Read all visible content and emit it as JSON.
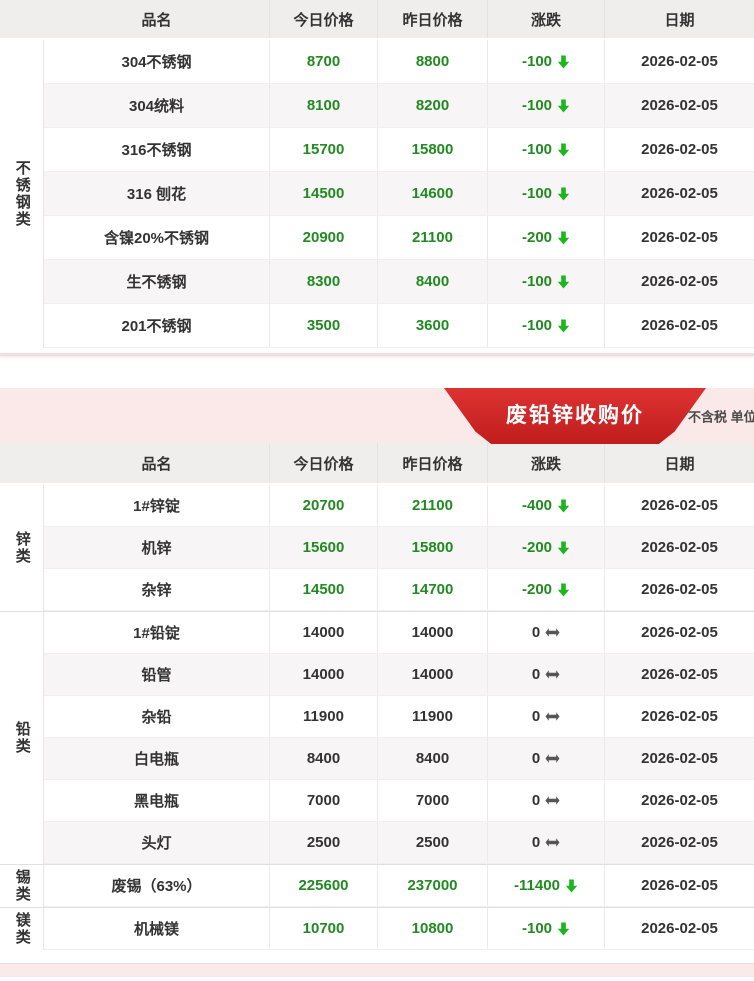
{
  "columns": {
    "name": "品名",
    "today": "今日价格",
    "yesterday": "昨日价格",
    "change": "涨跌",
    "date": "日期"
  },
  "banner": {
    "title": "废铅锌收购价",
    "note": "不含税 单位"
  },
  "colors": {
    "price_green": "#218a21",
    "arrow_green": "#1db41d",
    "flat_gray": "#555555",
    "ribbon_red": "#c01d1d",
    "strip_pink": "#fbe9e9"
  },
  "tables": [
    {
      "name": "stainless-steel-prices",
      "groups": [
        {
          "category": "不锈钢类",
          "rows": [
            {
              "name": "304不锈钢",
              "today": "8700",
              "yesterday": "8800",
              "change": "-100",
              "dir": "down",
              "date": "2026-02-05"
            },
            {
              "name": "304统料",
              "today": "8100",
              "yesterday": "8200",
              "change": "-100",
              "dir": "down",
              "date": "2026-02-05"
            },
            {
              "name": "316不锈钢",
              "today": "15700",
              "yesterday": "15800",
              "change": "-100",
              "dir": "down",
              "date": "2026-02-05"
            },
            {
              "name": "316 刨花",
              "today": "14500",
              "yesterday": "14600",
              "change": "-100",
              "dir": "down",
              "date": "2026-02-05"
            },
            {
              "name": "含镍20%不锈钢",
              "today": "20900",
              "yesterday": "21100",
              "change": "-200",
              "dir": "down",
              "date": "2026-02-05"
            },
            {
              "name": "生不锈钢",
              "today": "8300",
              "yesterday": "8400",
              "change": "-100",
              "dir": "down",
              "date": "2026-02-05"
            },
            {
              "name": "201不锈钢",
              "today": "3500",
              "yesterday": "3600",
              "change": "-100",
              "dir": "down",
              "date": "2026-02-05"
            }
          ]
        }
      ]
    },
    {
      "name": "scrap-lead-zinc-prices",
      "groups": [
        {
          "category": "锌类",
          "rows": [
            {
              "name": "1#锌锭",
              "today": "20700",
              "yesterday": "21100",
              "change": "-400",
              "dir": "down",
              "date": "2026-02-05"
            },
            {
              "name": "机锌",
              "today": "15600",
              "yesterday": "15800",
              "change": "-200",
              "dir": "down",
              "date": "2026-02-05"
            },
            {
              "name": "杂锌",
              "today": "14500",
              "yesterday": "14700",
              "change": "-200",
              "dir": "down",
              "date": "2026-02-05"
            }
          ]
        },
        {
          "category": "铅类",
          "rows": [
            {
              "name": "1#铅锭",
              "today": "14000",
              "yesterday": "14000",
              "change": "0",
              "dir": "flat",
              "date": "2026-02-05"
            },
            {
              "name": "铅管",
              "today": "14000",
              "yesterday": "14000",
              "change": "0",
              "dir": "flat",
              "date": "2026-02-05"
            },
            {
              "name": "杂铅",
              "today": "11900",
              "yesterday": "11900",
              "change": "0",
              "dir": "flat",
              "date": "2026-02-05"
            },
            {
              "name": "白电瓶",
              "today": "8400",
              "yesterday": "8400",
              "change": "0",
              "dir": "flat",
              "date": "2026-02-05"
            },
            {
              "name": "黑电瓶",
              "today": "7000",
              "yesterday": "7000",
              "change": "0",
              "dir": "flat",
              "date": "2026-02-05"
            },
            {
              "name": "头灯",
              "today": "2500",
              "yesterday": "2500",
              "change": "0",
              "dir": "flat",
              "date": "2026-02-05"
            }
          ]
        },
        {
          "category": "锡类",
          "rows": [
            {
              "name": "废锡（63%）",
              "today": "225600",
              "yesterday": "237000",
              "change": "-11400",
              "dir": "down",
              "date": "2026-02-05"
            }
          ]
        },
        {
          "category": "镁类",
          "rows": [
            {
              "name": "机械镁",
              "today": "10700",
              "yesterday": "10800",
              "change": "-100",
              "dir": "down",
              "date": "2026-02-05"
            }
          ]
        }
      ]
    }
  ]
}
